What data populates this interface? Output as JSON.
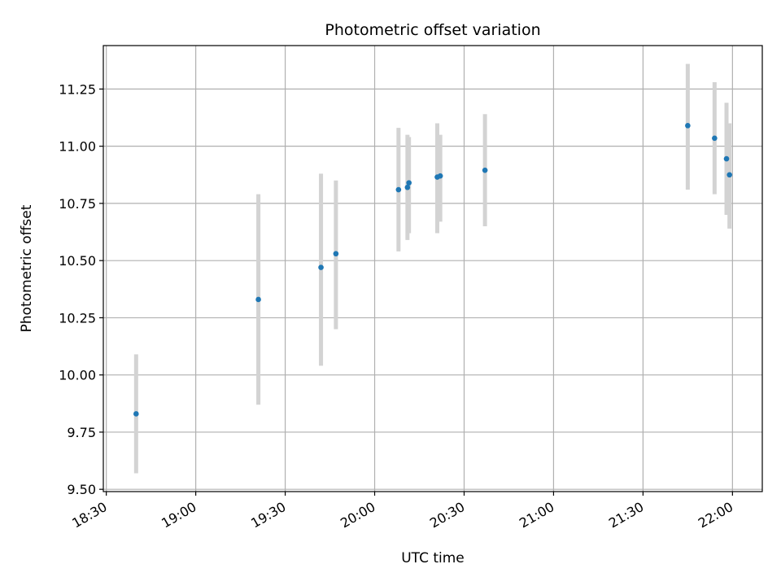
{
  "chart_data": {
    "type": "scatter",
    "title": "Photometric offset variation",
    "xlabel": "UTC time",
    "ylabel": "Photometric offset",
    "x_tick_labels": [
      "18:30",
      "19:00",
      "19:30",
      "20:00",
      "20:30",
      "21:00",
      "21:30",
      "22:00"
    ],
    "y_tick_labels": [
      "9.50",
      "9.75",
      "10.00",
      "10.25",
      "10.50",
      "10.75",
      "11.00",
      "11.25"
    ],
    "xlim": [
      "18:29",
      "22:10"
    ],
    "ylim": [
      9.49,
      11.44
    ],
    "grid": true,
    "series": [
      {
        "x": [
          "18:40",
          "19:21",
          "19:42",
          "19:47",
          "20:08",
          "20:11",
          "20:11:30",
          "20:21",
          "20:22",
          "20:37",
          "21:45",
          "21:54",
          "21:58",
          "21:59"
        ],
        "y": [
          9.83,
          10.33,
          10.47,
          10.53,
          10.81,
          10.82,
          10.84,
          10.865,
          10.87,
          10.895,
          11.09,
          11.035,
          10.945,
          10.875
        ],
        "error_low": [
          9.57,
          9.87,
          10.04,
          10.2,
          10.54,
          10.59,
          10.62,
          10.62,
          10.67,
          10.65,
          10.81,
          10.79,
          10.7,
          10.64
        ],
        "error_high": [
          10.09,
          10.79,
          10.88,
          10.85,
          11.08,
          11.05,
          11.04,
          11.1,
          11.05,
          11.14,
          11.36,
          11.28,
          11.19,
          11.1
        ]
      }
    ],
    "colors": {
      "marker": "#1f77b4",
      "errorbar": "#d3d3d3",
      "grid": "#b0b0b0",
      "frame": "#000000"
    }
  }
}
